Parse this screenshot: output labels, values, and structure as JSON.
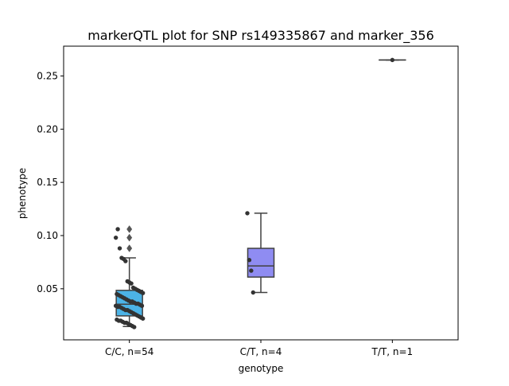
{
  "chart_data": {
    "type": "box",
    "title": "markerQTL plot for SNP rs149335867 and marker_356",
    "xlabel": "genotype",
    "ylabel": "phenotype",
    "ylim": [
      0.002,
      0.278
    ],
    "yticks": [
      0.05,
      0.1,
      0.15,
      0.2,
      0.25
    ],
    "ytick_labels": [
      "0.05",
      "0.10",
      "0.15",
      "0.20",
      "0.25"
    ],
    "grid": false,
    "legend": "none",
    "categories": [
      "C/C, n=54",
      "C/T, n=4",
      "T/T, n=1"
    ],
    "colors": {
      "box_fill": [
        "#4cb3e6",
        "#8f8cf2",
        "#c8a0f5"
      ],
      "box_line": "#404040",
      "point": "#333333"
    },
    "boxes": [
      {
        "q1": 0.0245,
        "median": 0.0355,
        "q3": 0.0485,
        "whisker_low": 0.0145,
        "whisker_high": 0.079,
        "outliers": [
          0.088,
          0.098,
          0.106
        ]
      },
      {
        "q1": 0.061,
        "median": 0.0715,
        "q3": 0.088,
        "whisker_low": 0.0465,
        "whisker_high": 0.121,
        "outliers": []
      },
      {
        "q1": 0.265,
        "median": 0.265,
        "q3": 0.265,
        "whisker_low": 0.265,
        "whisker_high": 0.265,
        "outliers": []
      }
    ],
    "points": [
      [
        0.098,
        0.106,
        0.088,
        0.079,
        0.078,
        0.076,
        0.057,
        0.056,
        0.055,
        0.051,
        0.05,
        0.049,
        0.048,
        0.047,
        0.046,
        0.045,
        0.044,
        0.043,
        0.042,
        0.041,
        0.04,
        0.039,
        0.038,
        0.038,
        0.037,
        0.036,
        0.036,
        0.035,
        0.034,
        0.034,
        0.033,
        0.033,
        0.032,
        0.031,
        0.03,
        0.03,
        0.029,
        0.028,
        0.027,
        0.026,
        0.025,
        0.024,
        0.023,
        0.022,
        0.021,
        0.02,
        0.02,
        0.019,
        0.018,
        0.018,
        0.017,
        0.016,
        0.015,
        0.014
      ],
      [
        0.121,
        0.077,
        0.067,
        0.0465
      ],
      [
        0.265
      ]
    ]
  }
}
